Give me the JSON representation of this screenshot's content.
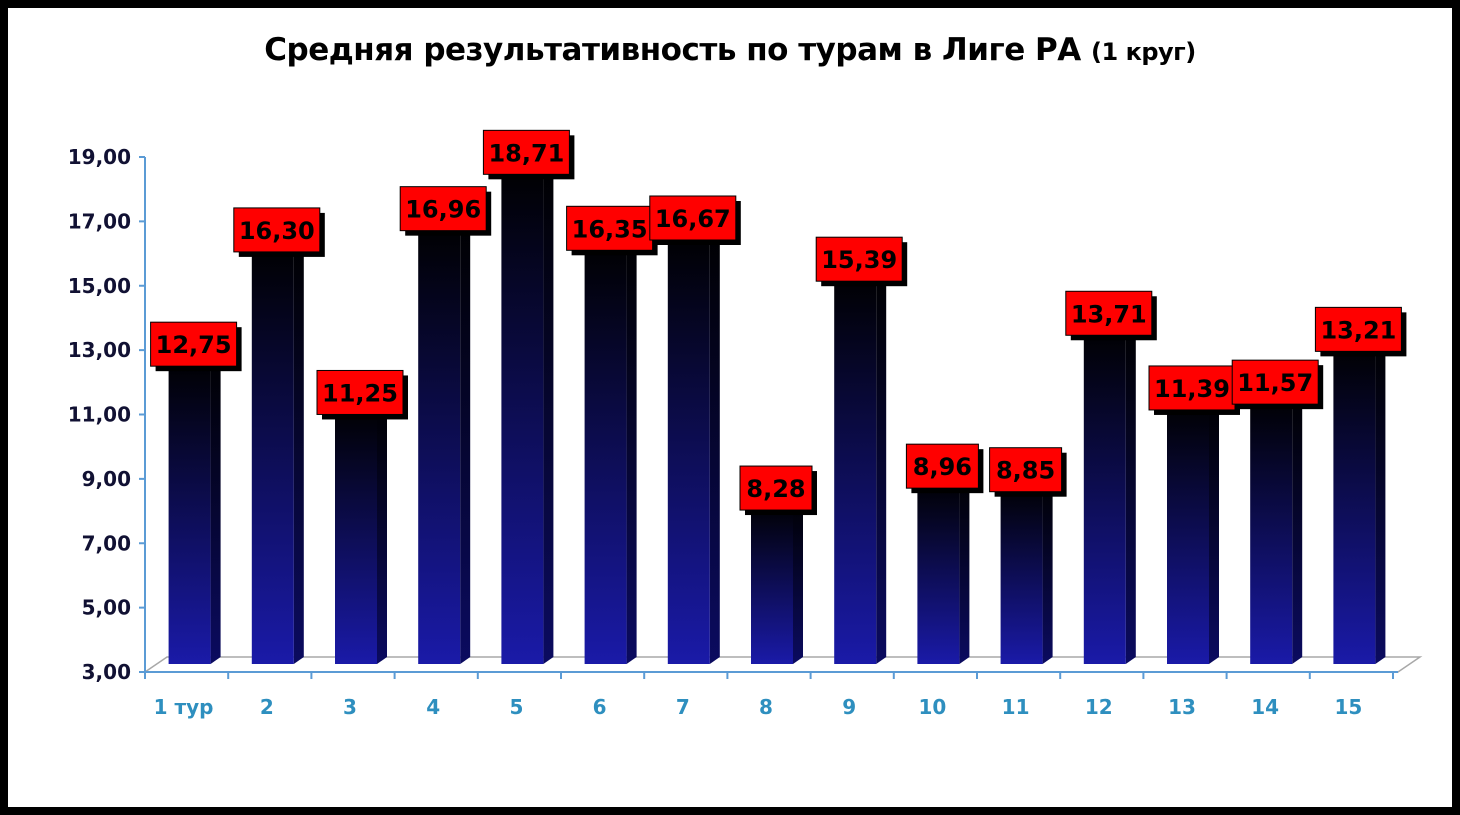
{
  "colors": {
    "bar_top": "#000000",
    "bar_bottom": "#1a1aa8",
    "label_bg": "#ff0000",
    "axis": "#5b9bd5",
    "xtick": "#2e8fbf"
  },
  "chart_data": {
    "type": "bar",
    "title": "Средняя результативность по турам в Лиге РА",
    "subtitle": "(1 круг)",
    "categories": [
      "1 тур",
      "2",
      "3",
      "4",
      "5",
      "6",
      "7",
      "8",
      "9",
      "10",
      "11",
      "12",
      "13",
      "14",
      "15"
    ],
    "values": [
      12.75,
      16.3,
      11.25,
      16.96,
      18.71,
      16.35,
      16.67,
      8.28,
      15.39,
      8.96,
      8.85,
      13.71,
      11.39,
      11.57,
      13.21
    ],
    "value_labels": [
      "12,75",
      "16,30",
      "11,25",
      "16,96",
      "18,71",
      "16,35",
      "16,67",
      "8,28",
      "15,39",
      "8,96",
      "8,85",
      "13,71",
      "11,39",
      "11,57",
      "13,21"
    ],
    "y_ticks": [
      "3,00",
      "5,00",
      "7,00",
      "9,00",
      "11,00",
      "13,00",
      "15,00",
      "17,00",
      "19,00"
    ],
    "y_tick_values": [
      3,
      5,
      7,
      9,
      11,
      13,
      15,
      17,
      19
    ],
    "ylim": [
      3,
      19
    ],
    "xlabel": "",
    "ylabel": "",
    "grid": false,
    "legend": "none"
  }
}
